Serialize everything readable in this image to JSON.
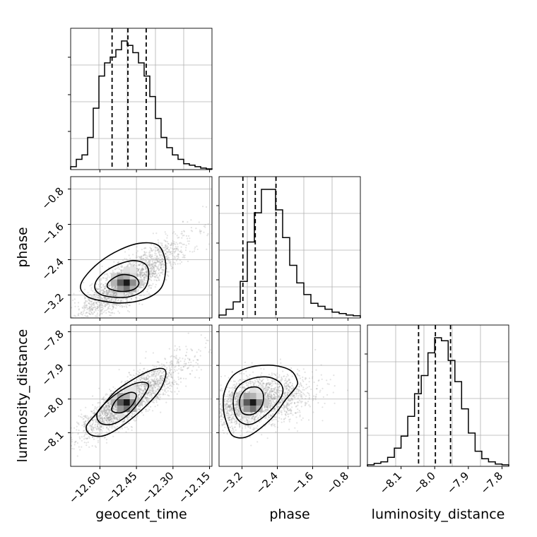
{
  "chart_data": {
    "type": "corner",
    "parameters": [
      "geocent_time",
      "phase",
      "luminosity_distance"
    ],
    "xlabels": [
      "geocent_time",
      "phase",
      "luminosity_distance"
    ],
    "ylabels": [
      "",
      "phase",
      "luminosity_distance"
    ],
    "ranges": {
      "geocent_time": [
        -12.72,
        -12.14
      ],
      "phase": [
        -3.72,
        -0.52
      ],
      "luminosity_distance": [
        -8.2,
        -7.78
      ]
    },
    "ticks": {
      "geocent_time": [
        -12.6,
        -12.45,
        -12.3,
        -12.15
      ],
      "phase": [
        -3.2,
        -2.4,
        -1.6,
        -0.8
      ],
      "luminosity_distance": [
        -8.1,
        -8.0,
        -7.9,
        -7.8
      ]
    },
    "tick_labels": {
      "geocent_time": [
        "−12.60",
        "−12.45",
        "−12.30",
        "−12.15"
      ],
      "phase": [
        "−3.2",
        "−2.4",
        "−1.6",
        "−0.8"
      ],
      "luminosity_distance": [
        "−8.1",
        "−8.0",
        "−7.9",
        "−7.8"
      ]
    },
    "quantiles": {
      "geocent_time": [
        -12.55,
        -12.485,
        -12.41
      ],
      "phase": [
        -3.18,
        -2.9,
        -2.43
      ],
      "luminosity_distance": [
        -8.048,
        -7.998,
        -7.953
      ]
    },
    "histograms": {
      "geocent_time": {
        "edges_range": [
          -12.72,
          -12.14
        ],
        "counts": [
          2,
          7,
          10,
          22,
          42,
          64,
          73,
          77,
          82,
          88,
          85,
          80,
          73,
          64,
          50,
          35,
          22,
          15,
          10,
          7,
          4,
          3,
          2,
          1,
          0.5
        ]
      },
      "phase": {
        "edges_range": [
          -3.72,
          -0.52
        ],
        "counts": [
          2,
          6,
          11,
          25,
          52,
          72,
          88,
          88,
          74,
          55,
          36,
          24,
          16,
          10,
          8,
          6,
          4,
          3,
          2,
          1.5
        ]
      },
      "luminosity_distance": {
        "edges_range": [
          -8.2,
          -7.78
        ],
        "counts": [
          1,
          2,
          3,
          6,
          12,
          20,
          33,
          48,
          60,
          75,
          85,
          83,
          70,
          56,
          38,
          22,
          10,
          5,
          3,
          1.5,
          1
        ]
      }
    },
    "pairs": [
      {
        "x": "geocent_time",
        "y": "phase",
        "center": [
          -12.49,
          -2.92
        ],
        "contours": [
          [
            [
              -12.66,
              -3.2
            ],
            [
              -12.62,
              -3.3
            ],
            [
              -12.52,
              -3.38
            ],
            [
              -12.42,
              -3.3
            ],
            [
              -12.35,
              -3.05
            ],
            [
              -12.33,
              -2.62
            ],
            [
              -12.34,
              -2.25
            ],
            [
              -12.37,
              -2.05
            ],
            [
              -12.44,
              -2.03
            ],
            [
              -12.52,
              -2.18
            ],
            [
              -12.6,
              -2.45
            ],
            [
              -12.66,
              -2.78
            ],
            [
              -12.68,
              -3.02
            ]
          ],
          [
            [
              -12.61,
              -3.14
            ],
            [
              -12.56,
              -3.24
            ],
            [
              -12.48,
              -3.24
            ],
            [
              -12.42,
              -3.08
            ],
            [
              -12.4,
              -2.78
            ],
            [
              -12.41,
              -2.52
            ],
            [
              -12.46,
              -2.42
            ],
            [
              -12.53,
              -2.52
            ],
            [
              -12.59,
              -2.72
            ],
            [
              -12.62,
              -2.95
            ]
          ],
          [
            [
              -12.56,
              -3.06
            ],
            [
              -12.51,
              -3.12
            ],
            [
              -12.46,
              -3.07
            ],
            [
              -12.44,
              -2.93
            ],
            [
              -12.46,
              -2.78
            ],
            [
              -12.51,
              -2.74
            ],
            [
              -12.55,
              -2.84
            ],
            [
              -12.57,
              -2.97
            ]
          ]
        ]
      },
      {
        "x": "geocent_time",
        "y": "luminosity_distance",
        "center": [
          -12.49,
          -8.01
        ],
        "contours": [
          [
            [
              -12.64,
              -8.105
            ],
            [
              -12.59,
              -8.11
            ],
            [
              -12.53,
              -8.09
            ],
            [
              -12.44,
              -8.04
            ],
            [
              -12.36,
              -7.98
            ],
            [
              -12.33,
              -7.93
            ],
            [
              -12.34,
              -7.91
            ],
            [
              -12.39,
              -7.915
            ],
            [
              -12.46,
              -7.94
            ],
            [
              -12.54,
              -7.98
            ],
            [
              -12.61,
              -8.04
            ],
            [
              -12.655,
              -8.08
            ]
          ],
          [
            [
              -12.6,
              -8.07
            ],
            [
              -12.55,
              -8.075
            ],
            [
              -12.49,
              -8.05
            ],
            [
              -12.43,
              -8.0
            ],
            [
              -12.4,
              -7.96
            ],
            [
              -12.43,
              -7.95
            ],
            [
              -12.49,
              -7.965
            ],
            [
              -12.56,
              -8.0
            ],
            [
              -12.61,
              -8.04
            ]
          ],
          [
            [
              -12.55,
              -8.035
            ],
            [
              -12.51,
              -8.04
            ],
            [
              -12.47,
              -8.02
            ],
            [
              -12.45,
              -7.99
            ],
            [
              -12.47,
              -7.98
            ],
            [
              -12.51,
              -7.99
            ],
            [
              -12.54,
              -8.01
            ]
          ]
        ]
      },
      {
        "x": "phase",
        "y": "luminosity_distance",
        "center": [
          -2.95,
          -8.01
        ],
        "contours": [
          [
            [
              -3.55,
              -8.07
            ],
            [
              -3.4,
              -8.11
            ],
            [
              -3.05,
              -8.11
            ],
            [
              -2.55,
              -8.06
            ],
            [
              -2.2,
              -8.0
            ],
            [
              -1.98,
              -7.965
            ],
            [
              -1.95,
              -7.945
            ],
            [
              -2.1,
              -7.915
            ],
            [
              -2.5,
              -7.9
            ],
            [
              -3.0,
              -7.905
            ],
            [
              -3.4,
              -7.93
            ],
            [
              -3.6,
              -7.98
            ],
            [
              -3.62,
              -8.03
            ]
          ],
          [
            [
              -3.3,
              -8.06
            ],
            [
              -3.0,
              -8.075
            ],
            [
              -2.6,
              -8.04
            ],
            [
              -2.3,
              -7.99
            ],
            [
              -2.32,
              -7.955
            ],
            [
              -2.6,
              -7.935
            ],
            [
              -3.0,
              -7.94
            ],
            [
              -3.3,
              -7.965
            ],
            [
              -3.4,
              -8.01
            ]
          ],
          [
            [
              -3.2,
              -8.04
            ],
            [
              -2.95,
              -8.045
            ],
            [
              -2.75,
              -8.02
            ],
            [
              -2.72,
              -7.985
            ],
            [
              -2.85,
              -7.965
            ],
            [
              -3.1,
              -7.97
            ],
            [
              -3.25,
              -8.0
            ]
          ]
        ]
      }
    ],
    "grid": true
  }
}
